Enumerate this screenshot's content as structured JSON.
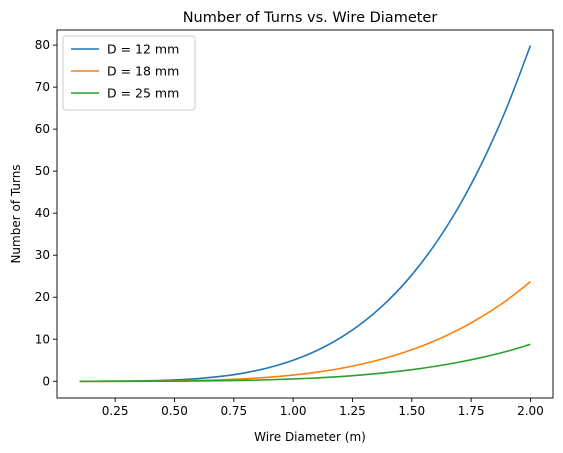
{
  "chart_data": {
    "type": "line",
    "title": "Number of Turns vs. Wire Diameter",
    "xlabel": "Wire Diameter (m)",
    "ylabel": "Number of Turns",
    "xlim": [
      0.005,
      2.095
    ],
    "ylim": [
      -3.98,
      83.6
    ],
    "xticks": [
      0.25,
      0.5,
      0.75,
      1.0,
      1.25,
      1.5,
      1.75,
      2.0
    ],
    "xtick_labels": [
      "0.25",
      "0.50",
      "0.75",
      "1.00",
      "1.25",
      "1.50",
      "1.75",
      "2.00"
    ],
    "yticks": [
      0,
      10,
      20,
      30,
      40,
      50,
      60,
      70,
      80
    ],
    "ytick_labels": [
      "0",
      "10",
      "20",
      "30",
      "40",
      "50",
      "60",
      "70",
      "80"
    ],
    "grid": false,
    "legend_position": "upper-left",
    "x": [
      0.1,
      0.2,
      0.3,
      0.4,
      0.5,
      0.6,
      0.7,
      0.8,
      0.9,
      1.0,
      1.1,
      1.2,
      1.3,
      1.4,
      1.5,
      1.6,
      1.7,
      1.8,
      1.9,
      2.0
    ],
    "series": [
      {
        "name": "D = 12 mm",
        "color": "#1f77b4",
        "values": [
          0.0,
          0.01,
          0.04,
          0.13,
          0.31,
          0.65,
          1.2,
          2.05,
          3.28,
          5.0,
          7.32,
          10.37,
          14.28,
          19.21,
          25.31,
          32.77,
          41.75,
          52.46,
          65.1,
          79.9
        ]
      },
      {
        "name": "D = 18 mm",
        "color": "#ff7f0e",
        "values": [
          0.0,
          0.0,
          0.01,
          0.04,
          0.09,
          0.19,
          0.36,
          0.61,
          0.97,
          1.48,
          2.17,
          3.07,
          4.23,
          5.69,
          7.5,
          9.71,
          12.37,
          15.55,
          19.29,
          23.7
        ]
      },
      {
        "name": "D = 25 mm",
        "color": "#2ca02c",
        "values": [
          0.0,
          0.0,
          0.0,
          0.01,
          0.03,
          0.07,
          0.13,
          0.22,
          0.36,
          0.55,
          0.8,
          1.13,
          1.56,
          2.1,
          2.76,
          3.58,
          4.56,
          5.73,
          7.11,
          8.8
        ]
      }
    ]
  }
}
